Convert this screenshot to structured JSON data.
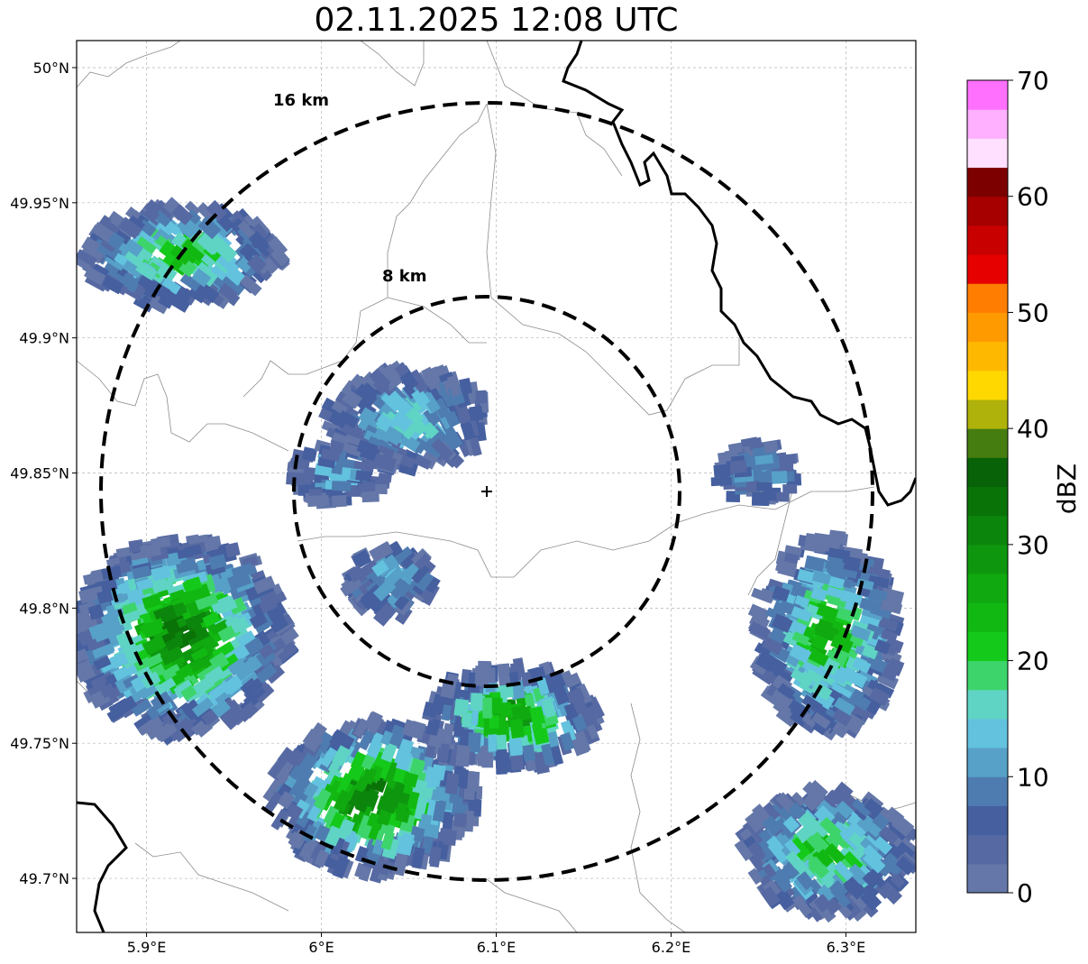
{
  "title": "02.11.2025 12:08 UTC",
  "map": {
    "x_ticks": [
      "5.9°E",
      "6°E",
      "6.1°E",
      "6.2°E",
      "6.3°E"
    ],
    "x_tick_values": [
      5.9,
      6.0,
      6.1,
      6.2,
      6.3
    ],
    "y_ticks": [
      "50°N",
      "49.95°N",
      "49.9°N",
      "49.85°N",
      "49.8°N",
      "49.75°N",
      "49.7°N"
    ],
    "y_tick_values": [
      50.0,
      49.95,
      49.9,
      49.85,
      49.8,
      49.75,
      49.7
    ],
    "lon_range": [
      5.86,
      6.34
    ],
    "lat_range": [
      49.68,
      50.01
    ],
    "grid": true,
    "radar_site": {
      "lon": 6.095,
      "lat": 49.843
    },
    "range_rings": [
      {
        "label": "8 km",
        "radius_km": 8
      },
      {
        "label": "16 km",
        "radius_km": 16
      }
    ],
    "borders": "country border (bold black) and municipal boundaries (thin gray)"
  },
  "colorbar": {
    "label": "dBZ",
    "ticks": [
      "0",
      "10",
      "20",
      "30",
      "40",
      "50",
      "60",
      "70"
    ],
    "range": [
      0,
      70
    ],
    "step": 2.5,
    "colors": [
      "#6477a8",
      "#5669a2",
      "#455f9f",
      "#4e7cb0",
      "#57a0c8",
      "#63c2de",
      "#5fd4c4",
      "#3dd56b",
      "#14c91a",
      "#12b812",
      "#10a910",
      "#0e970e",
      "#0c850c",
      "#0a7308",
      "#086207",
      "#457d10",
      "#afb20a",
      "#ffd800",
      "#ffb800",
      "#ff9a00",
      "#ff7d00",
      "#e60000",
      "#c80000",
      "#a60000",
      "#7c0000",
      "#ffe0ff",
      "#ffb0ff",
      "#ff70ff",
      "#f032f0"
    ]
  },
  "chart_data": {
    "type": "heatmap",
    "title": "02.11.2025 12:08 UTC",
    "colorbar_label": "dBZ",
    "value_range": [
      0,
      70
    ],
    "echo_cells": [
      {
        "lon": 5.92,
        "lat": 49.93,
        "dbz_max": 24
      },
      {
        "lon": 6.05,
        "lat": 49.87,
        "dbz_max": 16
      },
      {
        "lon": 6.01,
        "lat": 49.85,
        "dbz_max": 14
      },
      {
        "lon": 6.04,
        "lat": 49.81,
        "dbz_max": 14
      },
      {
        "lon": 5.92,
        "lat": 49.79,
        "dbz_max": 34
      },
      {
        "lon": 6.03,
        "lat": 49.73,
        "dbz_max": 34
      },
      {
        "lon": 6.11,
        "lat": 49.76,
        "dbz_max": 30
      },
      {
        "lon": 6.25,
        "lat": 49.85,
        "dbz_max": 12
      },
      {
        "lon": 6.29,
        "lat": 49.79,
        "dbz_max": 26
      },
      {
        "lon": 6.29,
        "lat": 49.71,
        "dbz_max": 24
      }
    ]
  }
}
